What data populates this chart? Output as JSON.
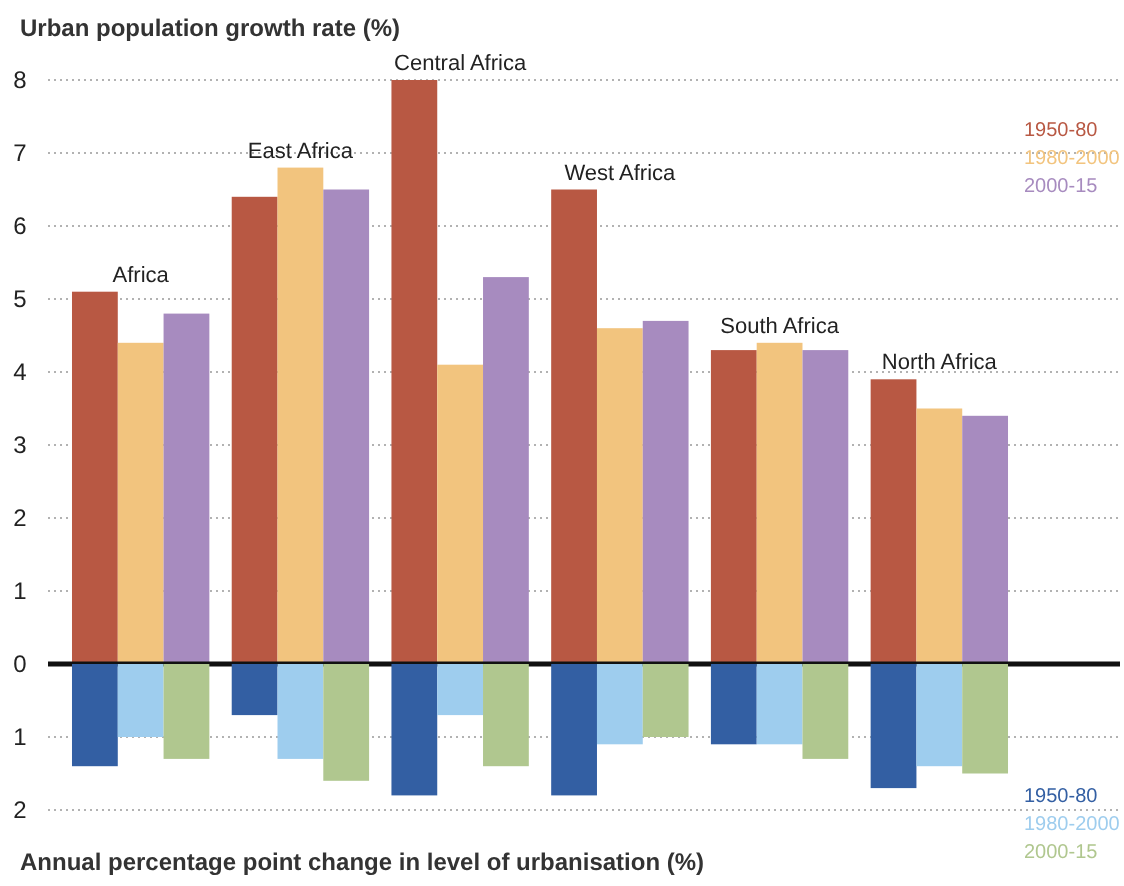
{
  "chart_data": [
    {
      "type": "bar",
      "ylabel": "Urban population growth rate (%)",
      "categories": [
        "Africa",
        "East Africa",
        "Central Africa",
        "West Africa",
        "South Africa",
        "North Africa"
      ],
      "series": [
        {
          "name": "1950-80",
          "color": "#b85843",
          "values": [
            5.1,
            6.4,
            8.0,
            6.5,
            4.3,
            3.9
          ]
        },
        {
          "name": "1980-2000",
          "color": "#f2c47e",
          "values": [
            4.4,
            6.8,
            4.1,
            4.6,
            4.4,
            3.5
          ]
        },
        {
          "name": "2000-15",
          "color": "#a78bbf",
          "values": [
            4.8,
            6.5,
            5.3,
            4.7,
            4.3,
            3.4
          ]
        }
      ],
      "ylim": [
        0,
        8
      ],
      "yticks": [
        0,
        1,
        2,
        3,
        4,
        5,
        6,
        7,
        8
      ],
      "grid": "y",
      "legend": "top right"
    },
    {
      "type": "bar",
      "ylabel": "Annual percentage point change in level of urbanisation (%)",
      "categories": [
        null,
        null,
        null,
        null,
        null,
        null
      ],
      "series": [
        {
          "name": "1950-80",
          "color": "#335fa3",
          "values": [
            1.4,
            0.7,
            1.8,
            1.8,
            1.1,
            1.7
          ]
        },
        {
          "name": "1980-2000",
          "color": "#9ecdee",
          "values": [
            1.0,
            1.3,
            0.7,
            1.1,
            1.1,
            1.4
          ]
        },
        {
          "name": "2000-15",
          "color": "#b0c78f",
          "values": [
            1.3,
            1.6,
            1.4,
            1.0,
            1.3,
            1.5
          ]
        }
      ],
      "ylim": [
        2,
        0
      ],
      "yticks": [
        1,
        2
      ],
      "grid": "y",
      "legend": "bottom right",
      "tick_labels": "y"
    }
  ]
}
